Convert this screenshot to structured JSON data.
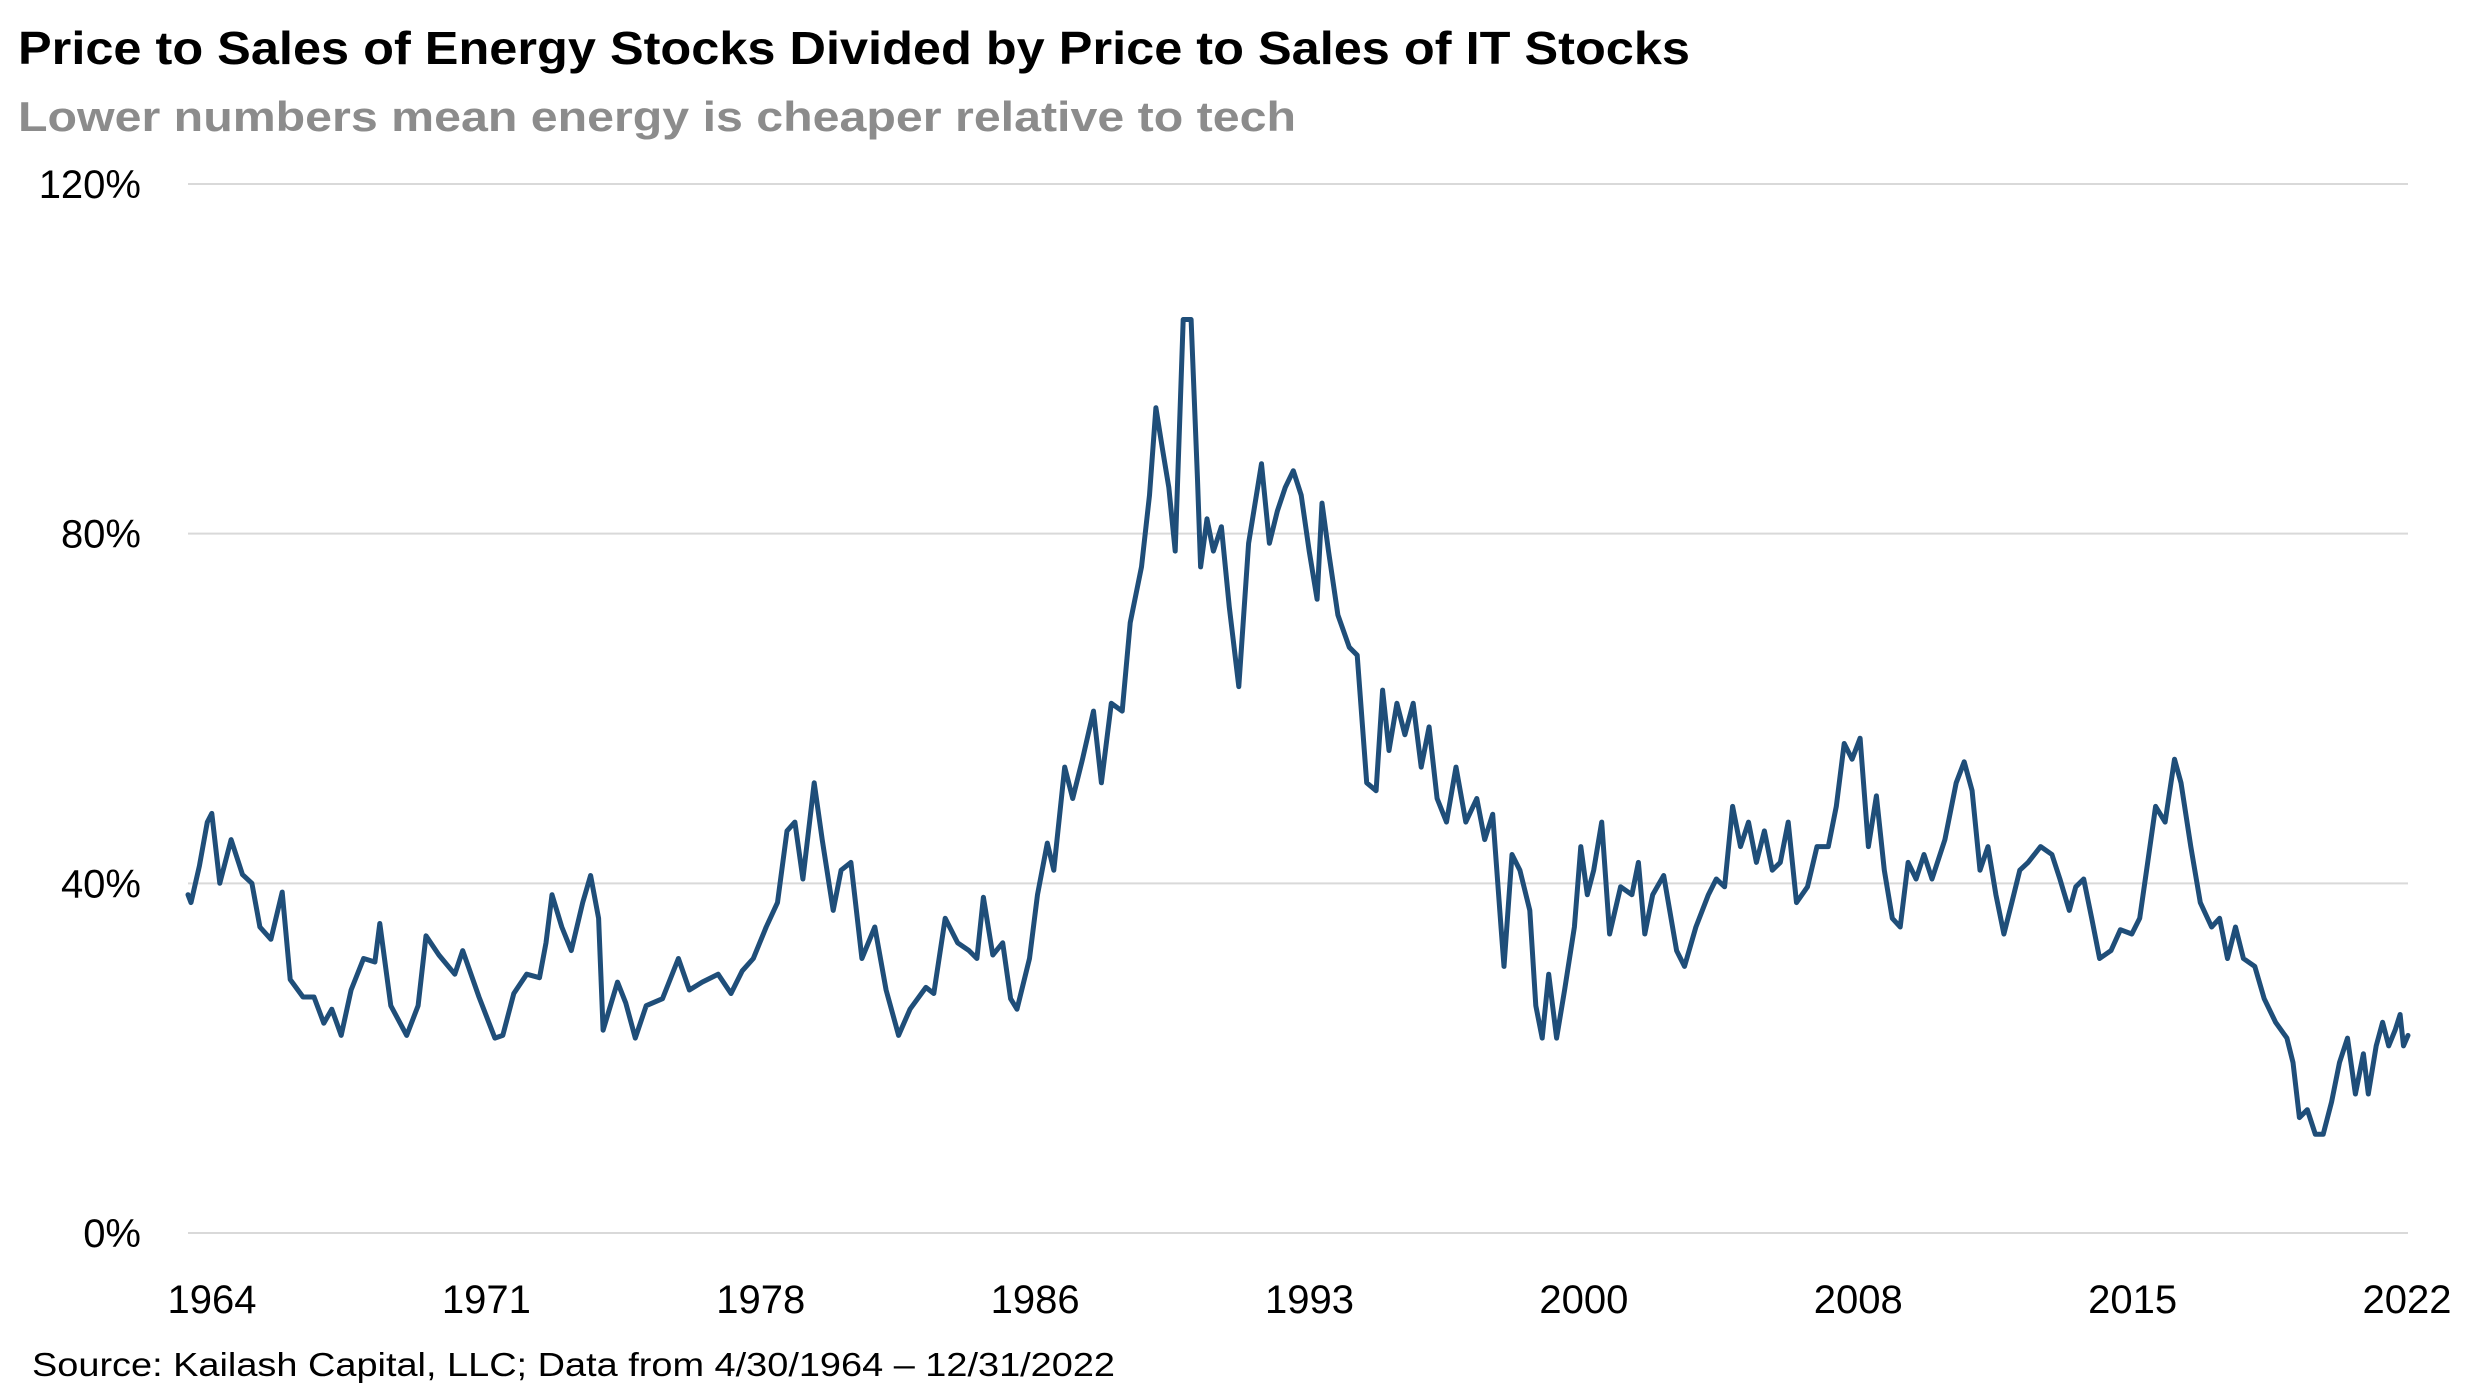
{
  "chart_data": {
    "type": "line",
    "title": "Price to Sales of Energy Stocks Divided by Price to Sales of IT Stocks",
    "subtitle": "Lower numbers mean energy is cheaper relative to tech",
    "source": "Source: Kailash Capital, LLC; Data from 4/30/1964 – 12/31/2022",
    "xlabel": "",
    "ylabel": "",
    "ylim": [
      0,
      120
    ],
    "xlim": [
      1964.33,
      2023.0
    ],
    "y_ticks": [
      "0%",
      "40%",
      "80%",
      "120%"
    ],
    "y_tick_values": [
      0,
      40,
      80,
      120
    ],
    "x_tick_labels": [
      "1964",
      "1971",
      "1978",
      "1986",
      "1993",
      "2000",
      "2008",
      "2015",
      "2022"
    ],
    "grid": "horizontal",
    "legend": "none",
    "line_color": "#1f4e79",
    "grid_color": "#d9d9d9",
    "series": [
      {
        "x": [
          1964.33,
          1964.41,
          1964.63,
          1964.84,
          1964.96,
          1965.17,
          1965.47,
          1965.77,
          1966.02,
          1966.23,
          1966.52,
          1966.82,
          1967.03,
          1967.37,
          1967.66,
          1967.92,
          1968.13,
          1968.38,
          1968.64,
          1968.97,
          1969.27,
          1969.4,
          1969.69,
          1970.11,
          1970.41,
          1970.62,
          1970.96,
          1971.38,
          1971.59,
          1972.02,
          1972.44,
          1972.65,
          1972.94,
          1973.28,
          1973.62,
          1973.79,
          1973.95,
          1974.21,
          1974.46,
          1974.76,
          1974.97,
          1975.18,
          1975.3,
          1975.68,
          1975.9,
          1976.15,
          1976.44,
          1976.87,
          1977.29,
          1977.58,
          1977.92,
          1978.34,
          1978.68,
          1978.98,
          1979.27,
          1979.61,
          1979.91,
          1980.16,
          1980.37,
          1980.58,
          1980.88,
          1981.09,
          1981.38,
          1981.59,
          1981.85,
          1982.14,
          1982.48,
          1982.78,
          1983.11,
          1983.41,
          1983.83,
          1984.04,
          1984.34,
          1984.67,
          1984.97,
          1985.18,
          1985.35,
          1985.6,
          1985.86,
          1986.07,
          1986.24,
          1986.57,
          1986.78,
          1987.04,
          1987.21,
          1987.5,
          1987.71,
          1987.97,
          1988.26,
          1988.47,
          1988.73,
          1989.02,
          1989.23,
          1989.53,
          1989.74,
          1989.91,
          1990.08,
          1990.25,
          1990.42,
          1990.63,
          1990.84,
          1991.01,
          1991.09,
          1991.26,
          1991.43,
          1991.64,
          1991.85,
          1992.1,
          1992.36,
          1992.7,
          1992.91,
          1993.12,
          1993.33,
          1993.54,
          1993.75,
          1993.96,
          1994.17,
          1994.3,
          1994.47,
          1994.72,
          1995.02,
          1995.23,
          1995.48,
          1995.73,
          1995.9,
          1996.07,
          1996.28,
          1996.49,
          1996.71,
          1996.92,
          1997.13,
          1997.34,
          1997.59,
          1997.84,
          1998.1,
          1998.39,
          1998.6,
          1998.81,
          1999.03,
          1999.11,
          1999.32,
          1999.53,
          1999.79,
          1999.95,
          2000.12,
          2000.29,
          2000.5,
          2000.71,
          2000.97,
          2001.14,
          2001.31,
          2001.48,
          2001.69,
          2001.9,
          2002.19,
          2002.49,
          2002.66,
          2002.83,
          2003.04,
          2003.33,
          2003.67,
          2003.88,
          2004.18,
          2004.51,
          2004.72,
          2004.94,
          2005.15,
          2005.36,
          2005.57,
          2005.78,
          2005.99,
          2006.2,
          2006.41,
          2006.62,
          2006.84,
          2007.13,
          2007.38,
          2007.68,
          2007.89,
          2008.1,
          2008.31,
          2008.52,
          2008.74,
          2008.95,
          2009.16,
          2009.37,
          2009.58,
          2009.79,
          2010.0,
          2010.21,
          2010.42,
          2010.76,
          2011.06,
          2011.27,
          2011.48,
          2011.69,
          2011.9,
          2012.11,
          2012.32,
          2012.53,
          2012.74,
          2012.96,
          2013.29,
          2013.59,
          2013.8,
          2014.05,
          2014.22,
          2014.43,
          2014.64,
          2014.85,
          2015.15,
          2015.4,
          2015.7,
          2015.91,
          2016.12,
          2016.33,
          2016.58,
          2016.83,
          2017.0,
          2017.26,
          2017.51,
          2017.81,
          2018.02,
          2018.23,
          2018.44,
          2018.65,
          2018.95,
          2019.2,
          2019.5,
          2019.8,
          2019.96,
          2020.13,
          2020.34,
          2020.55,
          2020.76,
          2020.98,
          2021.19,
          2021.4,
          2021.61,
          2021.82,
          2021.95,
          2022.16,
          2022.33,
          2022.49,
          2022.66,
          2022.79,
          2022.88,
          2023.0
        ],
        "y": [
          38.7,
          37.8,
          42,
          47,
          48,
          40,
          45,
          41,
          40,
          35,
          33.6,
          39,
          29,
          27,
          27,
          24,
          25.6,
          22.6,
          27.8,
          31.4,
          31,
          35.4,
          26,
          22.6,
          26,
          34,
          31.8,
          29.6,
          32.3,
          27,
          22.3,
          22.6,
          27.4,
          29.6,
          29.2,
          33.2,
          38.7,
          35,
          32.3,
          37.8,
          40.9,
          36,
          23.2,
          28.7,
          26.3,
          22.3,
          26,
          26.8,
          31.4,
          27.8,
          28.7,
          29.6,
          27.4,
          30,
          31.4,
          35,
          37.8,
          46,
          47,
          40.5,
          51.5,
          45,
          36.9,
          41.5,
          42.4,
          31.4,
          35,
          27.8,
          22.6,
          25.6,
          28.1,
          27.4,
          36,
          33.2,
          32.3,
          31.4,
          38.4,
          31.8,
          33.2,
          26.8,
          25.6,
          31.4,
          38.7,
          44.6,
          41.5,
          53.3,
          49.7,
          54.2,
          59.7,
          51.5,
          60.6,
          59.7,
          69.8,
          76.2,
          84.4,
          94.4,
          89.8,
          85.3,
          78,
          104.5,
          104.5,
          86.2,
          76.2,
          81.7,
          78,
          80.8,
          71.6,
          62.5,
          78.9,
          88,
          78.9,
          82.6,
          85.3,
          87.2,
          84.4,
          78,
          72.5,
          83.5,
          78,
          70.7,
          67,
          66.1,
          51.5,
          50.6,
          62.1,
          55.2,
          60.6,
          57,
          60.6,
          53.3,
          57.9,
          49.7,
          47,
          53.3,
          47,
          49.7,
          45,
          47.9,
          35,
          30.5,
          43.3,
          41.5,
          36.9,
          26,
          22.3,
          29.6,
          22.3,
          27.8,
          35,
          44.2,
          38.7,
          41.5,
          47,
          34.2,
          39.6,
          38.7,
          42.4,
          34.2,
          38.7,
          40.9,
          32.3,
          30.5,
          35,
          38.7,
          40.5,
          39.6,
          48.8,
          44.2,
          47,
          42.4,
          46,
          41.5,
          42.4,
          47,
          37.8,
          39.6,
          44.2,
          44.2,
          48.8,
          56,
          54.2,
          56.6,
          44.2,
          50,
          41.5,
          36,
          35,
          42.4,
          40.5,
          43.3,
          40.5,
          45,
          51.5,
          53.9,
          50.6,
          41.5,
          44.2,
          38.7,
          34.2,
          37.8,
          41.5,
          42.4,
          44.2,
          43.3,
          40.5,
          36.9,
          39.6,
          40.5,
          36,
          31.4,
          32.3,
          34.7,
          34.2,
          36,
          42.4,
          48.8,
          47,
          54.2,
          51.5,
          44.2,
          37.8,
          35,
          36,
          31.4,
          35,
          31.4,
          30.5,
          26.8,
          24.1,
          22.3,
          19.5,
          13.2,
          14.1,
          11.3,
          11.3,
          15,
          19.5,
          22.3,
          15.9,
          20.5,
          15.9,
          21.4,
          24.1,
          21.4,
          23.2,
          25,
          21.4,
          22.6
        ]
      }
    ]
  }
}
